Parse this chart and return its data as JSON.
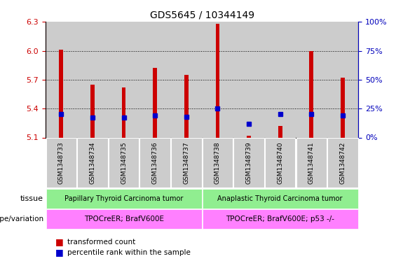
{
  "title": "GDS5645 / 10344149",
  "samples": [
    "GSM1348733",
    "GSM1348734",
    "GSM1348735",
    "GSM1348736",
    "GSM1348737",
    "GSM1348738",
    "GSM1348739",
    "GSM1348740",
    "GSM1348741",
    "GSM1348742"
  ],
  "transformed_count": [
    6.01,
    5.65,
    5.62,
    5.82,
    5.75,
    6.28,
    5.12,
    5.22,
    6.0,
    5.72
  ],
  "percentile_rank": [
    20,
    17,
    17,
    19,
    18,
    25,
    12,
    20,
    20,
    19
  ],
  "ylim_left": [
    5.1,
    6.3
  ],
  "ylim_right": [
    0,
    100
  ],
  "yticks_left": [
    5.1,
    5.4,
    5.7,
    6.0,
    6.3
  ],
  "yticks_right": [
    0,
    25,
    50,
    75,
    100
  ],
  "tissue_labels": [
    "Papillary Thyroid Carcinoma tumor",
    "Anaplastic Thyroid Carcinoma tumor"
  ],
  "tissue_color": "#90EE90",
  "genotype_labels": [
    "TPOCreER; BrafV600E",
    "TPOCreER; BrafV600E; p53 -/-"
  ],
  "genotype_color": "#FF80FF",
  "bar_color": "#CC0000",
  "dot_color": "#0000CC",
  "cell_bg_color": "#CCCCCC",
  "left_axis_color": "#CC0000",
  "right_axis_color": "#0000BB",
  "bar_bottom": 5.1,
  "grid_lines": [
    5.4,
    5.7,
    6.0
  ],
  "legend_items": [
    {
      "color": "#CC0000",
      "label": "transformed count"
    },
    {
      "color": "#0000CC",
      "label": "percentile rank within the sample"
    }
  ],
  "tissue_row_label": "tissue",
  "genotype_row_label": "genotype/variation"
}
